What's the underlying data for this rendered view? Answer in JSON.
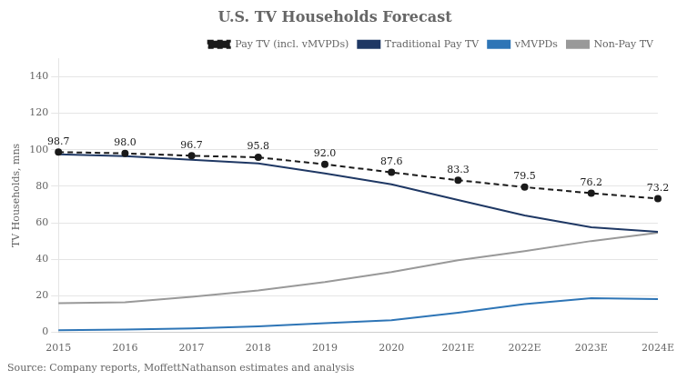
{
  "chart_data": {
    "type": "line",
    "title": "U.S. TV Households Forecast",
    "ylabel": "TV Households, mns",
    "annotations": [
      "Source: Company reports, MoffettNathanson estimates and analysis"
    ],
    "categories": [
      "2015",
      "2016",
      "2017",
      "2018",
      "2019",
      "2020",
      "2021E",
      "2022E",
      "2023E",
      "2024E"
    ],
    "series": [
      {
        "name": "Pay TV (incl. vMVPDs)",
        "color": "#1a1a1a",
        "marker": "o",
        "line_style": "dashed",
        "data_labels": true,
        "values": [
          98.7,
          98.0,
          96.7,
          95.8,
          92.0,
          87.6,
          83.3,
          79.5,
          76.2,
          73.2
        ],
        "value_labels": [
          "98.7",
          "98.0",
          "96.7",
          "95.8",
          "92.0",
          "87.6",
          "83.3",
          "79.5",
          "76.2",
          "73.2"
        ]
      },
      {
        "name": "Traditional Pay TV",
        "color": "#1f3864",
        "line_style": "solid",
        "values": [
          97.5,
          96.5,
          94.5,
          92.5,
          87.0,
          81.0,
          72.5,
          64.0,
          57.5,
          55.0
        ]
      },
      {
        "name": "vMVPDs",
        "color": "#2e75b6",
        "line_style": "solid",
        "values": [
          1.2,
          1.5,
          2.2,
          3.3,
          5.0,
          6.6,
          10.8,
          15.5,
          18.7,
          18.2
        ]
      },
      {
        "name": "Non-Pay TV",
        "color": "#999999",
        "line_style": "solid",
        "values": [
          16.0,
          16.5,
          19.5,
          23.0,
          27.5,
          33.0,
          39.5,
          44.5,
          50.0,
          54.5
        ]
      }
    ],
    "ylim": [
      0,
      150
    ],
    "yticks": [
      0,
      20,
      40,
      60,
      80,
      100,
      120,
      140
    ],
    "grid": true,
    "legend": "upper right"
  }
}
